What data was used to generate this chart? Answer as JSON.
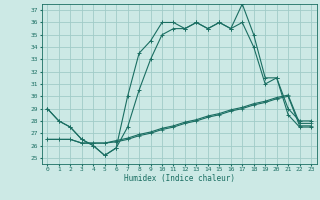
{
  "x": [
    0,
    1,
    2,
    3,
    4,
    5,
    6,
    7,
    8,
    9,
    10,
    11,
    12,
    13,
    14,
    15,
    16,
    17,
    18,
    19,
    20,
    21,
    22,
    23
  ],
  "line1": [
    29,
    28,
    27.5,
    26.5,
    26,
    25.2,
    25.8,
    30,
    33.5,
    34.5,
    36,
    36,
    35.5,
    36,
    35.5,
    36,
    35.5,
    37.5,
    35,
    31.5,
    31.5,
    29,
    28,
    28
  ],
  "line2": [
    29,
    28,
    27.5,
    26.5,
    26,
    25.2,
    25.8,
    27.5,
    30.5,
    33,
    35,
    35.5,
    35.5,
    36,
    35.5,
    36,
    35.5,
    36,
    34,
    31,
    31.5,
    28.5,
    27.5,
    27.5
  ],
  "line3": [
    26.5,
    26.5,
    26.5,
    26.2,
    26.2,
    26.2,
    26.4,
    26.6,
    26.9,
    27.1,
    27.4,
    27.6,
    27.9,
    28.1,
    28.4,
    28.6,
    28.9,
    29.1,
    29.4,
    29.6,
    29.9,
    30.1,
    27.8,
    27.8
  ],
  "line4": [
    26.5,
    26.5,
    26.5,
    26.2,
    26.2,
    26.2,
    26.3,
    26.5,
    26.8,
    27.0,
    27.3,
    27.5,
    27.8,
    28.0,
    28.3,
    28.5,
    28.8,
    29.0,
    29.3,
    29.5,
    29.8,
    30.0,
    27.6,
    27.6
  ],
  "bg_color": "#cce9e5",
  "line_color": "#1a6e62",
  "grid_color": "#a0ccc8",
  "xlabel": "Humidex (Indice chaleur)",
  "xlim": [
    -0.5,
    23.5
  ],
  "ylim": [
    24.5,
    37.5
  ],
  "yticks": [
    25,
    26,
    27,
    28,
    29,
    30,
    31,
    32,
    33,
    34,
    35,
    36,
    37
  ],
  "xtick_labels": [
    "0",
    "1",
    "2",
    "3",
    "4",
    "5",
    "6",
    "7",
    "8",
    "9",
    "10",
    "11",
    "12",
    "13",
    "14",
    "15",
    "16",
    "17",
    "18",
    "19",
    "20",
    "21",
    "22",
    "23"
  ]
}
